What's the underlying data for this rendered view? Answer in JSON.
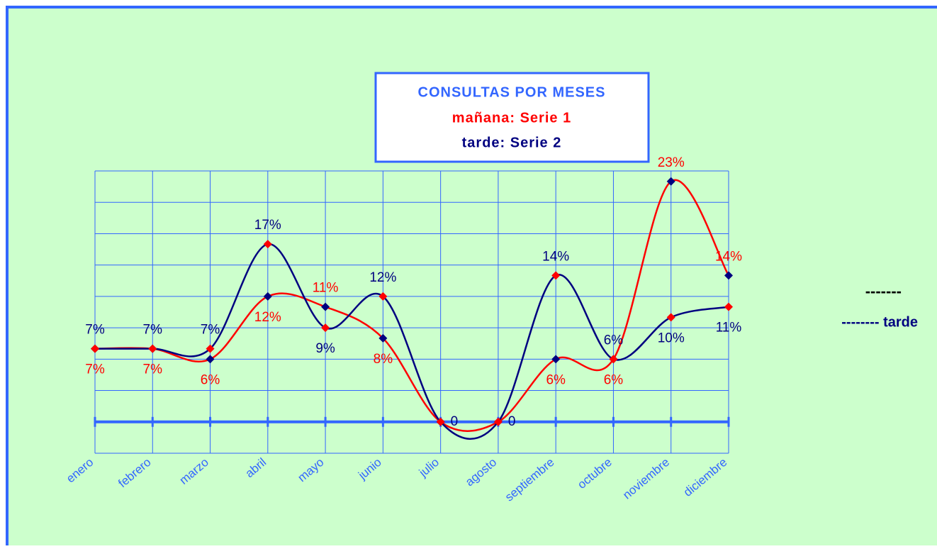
{
  "chart_data": {
    "type": "line",
    "title": "CONSULTAS POR MESES",
    "categories": [
      "enero",
      "febrero",
      "marzo",
      "abril",
      "mayo",
      "junio",
      "julio",
      "agosto",
      "septiembre",
      "octubre",
      "noviembre",
      "diciembre"
    ],
    "series": [
      {
        "name": "mañana: Serie 1",
        "color": "#ff0000",
        "marker_color": "#000080",
        "values": [
          7,
          7,
          6,
          12,
          11,
          8,
          0,
          0,
          6,
          6,
          23,
          14
        ],
        "value_labels": [
          "7%",
          "7%",
          "6%",
          "12%",
          "11%",
          "8%",
          null,
          null,
          "6%",
          "6%",
          "23%",
          "14%"
        ]
      },
      {
        "name": "tarde: Serie 2",
        "color": "#000080",
        "marker_color": "#ff0000",
        "values": [
          7,
          7,
          7,
          17,
          9,
          12,
          0,
          0,
          14,
          6,
          10,
          11
        ],
        "value_labels": [
          "7%",
          "7%",
          "7%",
          "17%",
          "9%",
          "12%",
          "0",
          "0",
          "14%",
          "6%",
          "10%",
          "11%"
        ]
      }
    ],
    "ylim": [
      -3,
      24
    ],
    "yticks": [
      -3,
      0,
      3,
      6,
      9,
      12,
      15,
      18,
      21,
      24
    ],
    "grid": true,
    "smooth": true,
    "annotations": [
      "-------",
      "-------- tarde"
    ]
  }
}
